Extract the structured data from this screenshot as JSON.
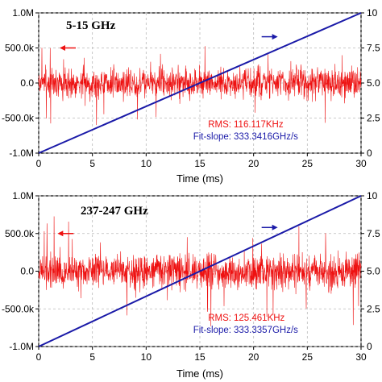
{
  "colors": {
    "noise": "#ee1111",
    "slope": "#1a1aa8",
    "grid": "#bbbbbb",
    "axis": "#000000"
  },
  "chart_data": [
    {
      "type": "line",
      "title": "5-15 GHz",
      "xlabel": "Time (ms)",
      "xlim": [
        0,
        30
      ],
      "xticks": [
        0,
        5,
        10,
        15,
        20,
        25,
        30
      ],
      "left_ylim": [
        -1000000,
        1000000
      ],
      "left_yticks": [
        -1000000,
        -500000,
        0,
        500000,
        1000000
      ],
      "left_yticklabels": [
        "-1.0M",
        "-500.0k",
        "0.0",
        "500.0k",
        "1.0M"
      ],
      "right_ylim": [
        0,
        10
      ],
      "right_yticks": [
        0,
        2.5,
        5,
        7.5,
        10
      ],
      "right_yticklabels": [
        "0",
        "2.5",
        "5.0",
        "7.5",
        "10"
      ],
      "grid": true,
      "series": [
        {
          "axis": "left",
          "color": "#ee1111",
          "style": "noise",
          "center": 0,
          "band": 200000,
          "max_spike": 600000,
          "seed": 7
        },
        {
          "axis": "right",
          "color": "#1a1aa8",
          "style": "line",
          "x": [
            0,
            30
          ],
          "y": [
            0,
            10
          ]
        }
      ],
      "arrows": [
        {
          "direction": "left",
          "color": "#ee1111",
          "x": 2.7,
          "y": 500000,
          "axis": "left"
        },
        {
          "direction": "right",
          "color": "#1a1aa8",
          "x": 21.5,
          "y": 8.3,
          "axis": "right"
        }
      ],
      "rms_label": "RMS:",
      "rms_value": "116.117KHz",
      "slope_label": "Fit-slope:",
      "slope_value": "333.3416GHz/s"
    },
    {
      "type": "line",
      "title": "237-247 GHz",
      "xlabel": "Time (ms)",
      "xlim": [
        0,
        30
      ],
      "xticks": [
        0,
        5,
        10,
        15,
        20,
        25,
        30
      ],
      "left_ylim": [
        -1000000,
        1000000
      ],
      "left_yticks": [
        -1000000,
        -500000,
        0,
        500000,
        1000000
      ],
      "left_yticklabels": [
        "-1.0M",
        "-500.0k",
        "0.0",
        "500.0k",
        "1.0M"
      ],
      "right_ylim": [
        0,
        10
      ],
      "right_yticks": [
        0,
        2.5,
        5,
        7.5,
        10
      ],
      "right_yticklabels": [
        "0",
        "2.5",
        "5.0",
        "7.5",
        "10"
      ],
      "grid": true,
      "series": [
        {
          "axis": "left",
          "color": "#ee1111",
          "style": "noise",
          "center": 0,
          "band": 210000,
          "max_spike": 750000,
          "seed": 19
        },
        {
          "axis": "right",
          "color": "#1a1aa8",
          "style": "line",
          "x": [
            0,
            30
          ],
          "y": [
            0,
            10
          ]
        }
      ],
      "arrows": [
        {
          "direction": "left",
          "color": "#ee1111",
          "x": 2.5,
          "y": 500000,
          "axis": "left"
        },
        {
          "direction": "right",
          "color": "#1a1aa8",
          "x": 21.5,
          "y": 7.9,
          "axis": "right"
        }
      ],
      "rms_label": "RMS:",
      "rms_value": "125.461KHz",
      "slope_label": "Fit-slope:",
      "slope_value": "333.3357GHz/s"
    }
  ]
}
